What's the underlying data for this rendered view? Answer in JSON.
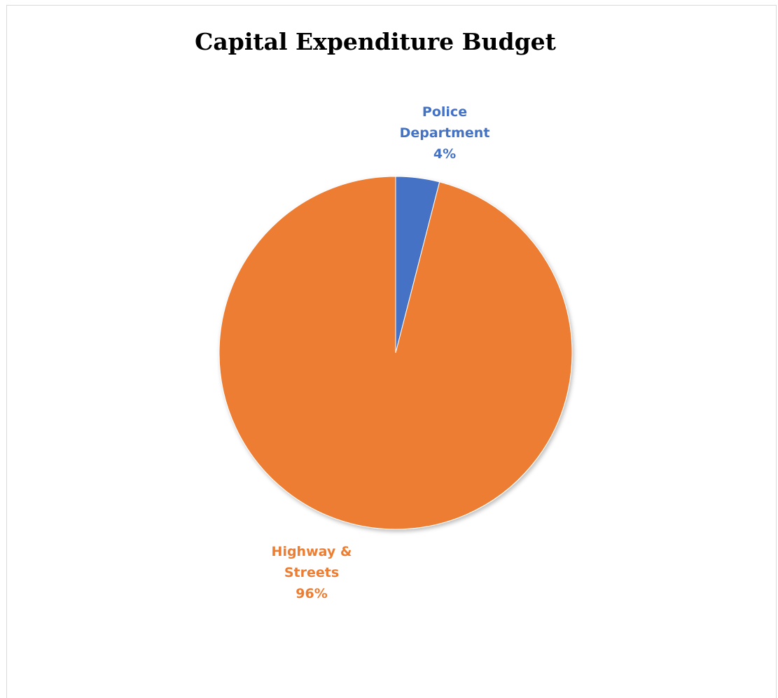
{
  "chart_data": {
    "type": "pie",
    "title": "Capital Expenditure Budget",
    "slices": [
      {
        "name_lines": [
          "Police",
          "Department"
        ],
        "percent_label": "4%",
        "value": 4,
        "color": "#4472c4"
      },
      {
        "name_lines": [
          "Highway &",
          "Streets"
        ],
        "percent_label": "96%",
        "value": 96,
        "color": "#ed7d31"
      }
    ],
    "legend": "none"
  }
}
